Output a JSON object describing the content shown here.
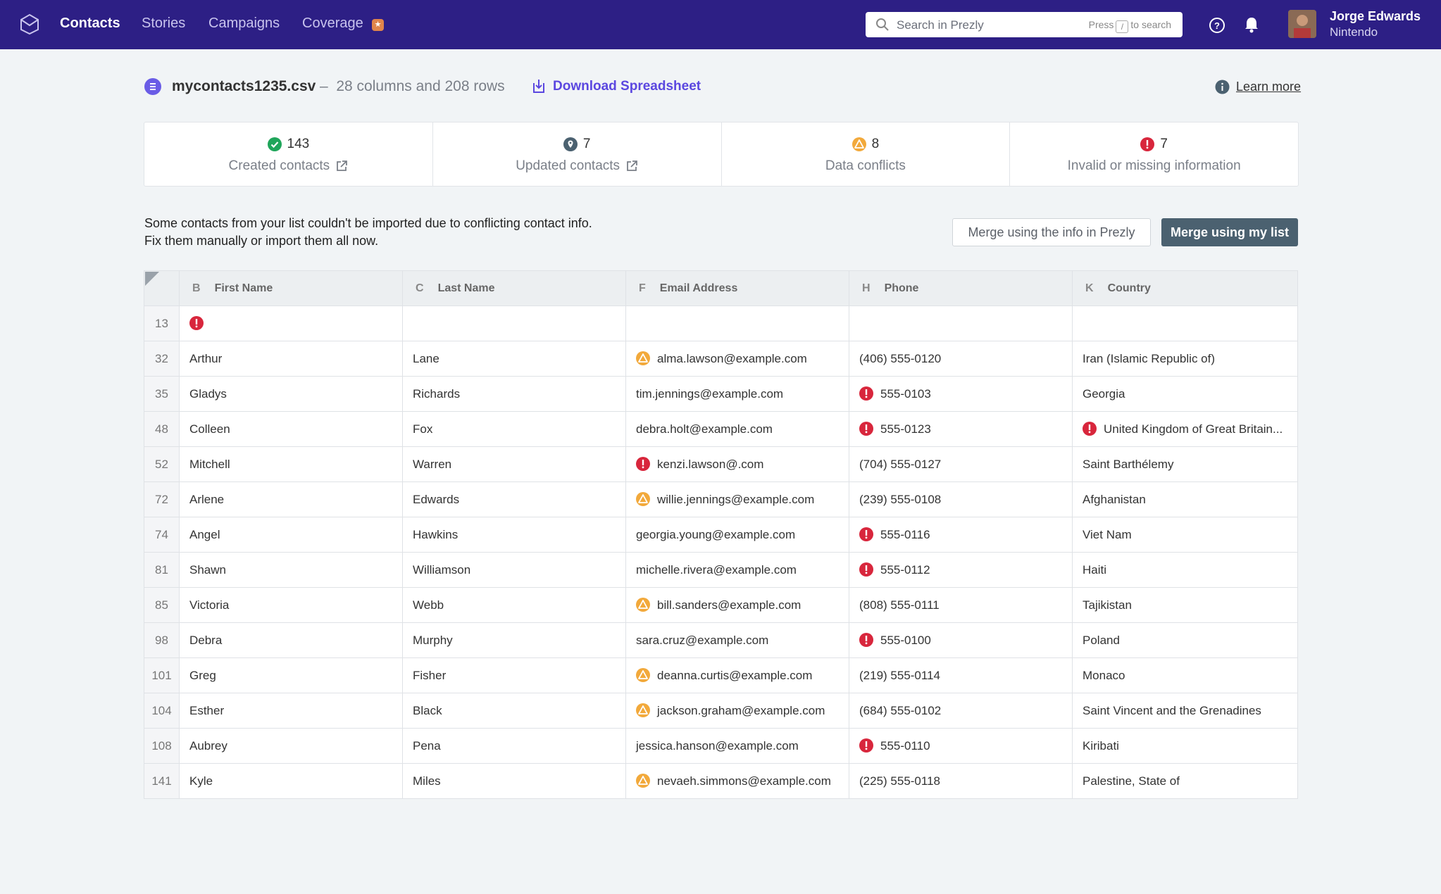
{
  "nav": {
    "items": [
      {
        "label": "Contacts",
        "active": true
      },
      {
        "label": "Stories",
        "active": false
      },
      {
        "label": "Campaigns",
        "active": false
      },
      {
        "label": "Coverage",
        "active": false
      }
    ],
    "coverage_badge_icon": "star-badge-icon"
  },
  "search": {
    "placeholder": "Search in Prezly",
    "hint_prefix": "Press",
    "hint_key": "/",
    "hint_suffix": "to search"
  },
  "user": {
    "name": "Jorge Edwards",
    "org": "Nintendo"
  },
  "file": {
    "name": "mycontacts1235.csv",
    "separator": "–",
    "meta": "28 columns and 208 rows",
    "download_label": "Download Spreadsheet",
    "learn_more": "Learn more"
  },
  "stats": [
    {
      "count": "143",
      "label": "Created contacts",
      "icon": "check-circle-icon",
      "color": "#1fa55a",
      "external": true
    },
    {
      "count": "7",
      "label": "Updated contacts",
      "icon": "pin-icon",
      "color": "#4b6170",
      "external": true
    },
    {
      "count": "8",
      "label": "Data conflicts",
      "icon": "warning-icon",
      "color": "#f2a93b",
      "external": false
    },
    {
      "count": "7",
      "label": "Invalid or missing information",
      "icon": "error-icon",
      "color": "#d8263c",
      "external": false
    }
  ],
  "message": {
    "line1": "Some contacts from your list couldn't be imported due to conflicting contact info.",
    "line2": "Fix them manually or import them all now."
  },
  "buttons": {
    "merge_prezly": "Merge using the info in Prezly",
    "merge_list": "Merge using my list"
  },
  "table": {
    "columns": [
      {
        "letter": "B",
        "name": "First Name"
      },
      {
        "letter": "C",
        "name": "Last Name"
      },
      {
        "letter": "F",
        "name": "Email Address"
      },
      {
        "letter": "H",
        "name": "Phone"
      },
      {
        "letter": "K",
        "name": "Country"
      }
    ],
    "rows": [
      {
        "num": "13",
        "first": "",
        "first_flag": "error",
        "last": "",
        "email": "",
        "email_flag": "",
        "phone": "",
        "phone_flag": "",
        "country": "",
        "country_flag": ""
      },
      {
        "num": "32",
        "first": "Arthur",
        "first_flag": "",
        "last": "Lane",
        "email": "alma.lawson@example.com",
        "email_flag": "warning",
        "phone": "(406) 555-0120",
        "phone_flag": "",
        "country": "Iran (Islamic Republic of)",
        "country_flag": ""
      },
      {
        "num": "35",
        "first": "Gladys",
        "first_flag": "",
        "last": "Richards",
        "email": "tim.jennings@example.com",
        "email_flag": "",
        "phone": "555-0103",
        "phone_flag": "error",
        "country": "Georgia",
        "country_flag": ""
      },
      {
        "num": "48",
        "first": "Colleen",
        "first_flag": "",
        "last": "Fox",
        "email": "debra.holt@example.com",
        "email_flag": "",
        "phone": "555-0123",
        "phone_flag": "error",
        "country": "United Kingdom of Great Britain...",
        "country_flag": "error"
      },
      {
        "num": "52",
        "first": "Mitchell",
        "first_flag": "",
        "last": "Warren",
        "email": "kenzi.lawson@.com",
        "email_flag": "error",
        "phone": "(704) 555-0127",
        "phone_flag": "",
        "country": "Saint Barthélemy",
        "country_flag": ""
      },
      {
        "num": "72",
        "first": "Arlene",
        "first_flag": "",
        "last": "Edwards",
        "email": "willie.jennings@example.com",
        "email_flag": "warning",
        "phone": "(239) 555-0108",
        "phone_flag": "",
        "country": "Afghanistan",
        "country_flag": ""
      },
      {
        "num": "74",
        "first": "Angel",
        "first_flag": "",
        "last": "Hawkins",
        "email": "georgia.young@example.com",
        "email_flag": "",
        "phone": "555-0116",
        "phone_flag": "error",
        "country": "Viet Nam",
        "country_flag": ""
      },
      {
        "num": "81",
        "first": "Shawn",
        "first_flag": "",
        "last": "Williamson",
        "email": "michelle.rivera@example.com",
        "email_flag": "",
        "phone": "555-0112",
        "phone_flag": "error",
        "country": "Haiti",
        "country_flag": ""
      },
      {
        "num": "85",
        "first": "Victoria",
        "first_flag": "",
        "last": "Webb",
        "email": "bill.sanders@example.com",
        "email_flag": "warning",
        "phone": "(808) 555-0111",
        "phone_flag": "",
        "country": "Tajikistan",
        "country_flag": ""
      },
      {
        "num": "98",
        "first": "Debra",
        "first_flag": "",
        "last": "Murphy",
        "email": "sara.cruz@example.com",
        "email_flag": "",
        "phone": "555-0100",
        "phone_flag": "error",
        "country": "Poland",
        "country_flag": ""
      },
      {
        "num": "101",
        "first": "Greg",
        "first_flag": "",
        "last": "Fisher",
        "email": "deanna.curtis@example.com",
        "email_flag": "warning",
        "phone": "(219) 555-0114",
        "phone_flag": "",
        "country": "Monaco",
        "country_flag": ""
      },
      {
        "num": "104",
        "first": "Esther",
        "first_flag": "",
        "last": "Black",
        "email": "jackson.graham@example.com",
        "email_flag": "warning",
        "phone": "(684) 555-0102",
        "phone_flag": "",
        "country": "Saint Vincent and the Grenadines",
        "country_flag": ""
      },
      {
        "num": "108",
        "first": "Aubrey",
        "first_flag": "",
        "last": "Pena",
        "email": "jessica.hanson@example.com",
        "email_flag": "",
        "phone": "555-0110",
        "phone_flag": "error",
        "country": "Kiribati",
        "country_flag": ""
      },
      {
        "num": "141",
        "first": "Kyle",
        "first_flag": "",
        "last": "Miles",
        "email": "nevaeh.simmons@example.com",
        "email_flag": "warning",
        "phone": "(225) 555-0118",
        "phone_flag": "",
        "country": "Palestine, State of",
        "country_flag": ""
      }
    ]
  },
  "colors": {
    "nav_bg": "#2d1f85",
    "accent": "#5b47e0",
    "error": "#d8263c",
    "warning": "#f2a93b",
    "success": "#1fa55a",
    "primary_button": "#4b6170"
  }
}
